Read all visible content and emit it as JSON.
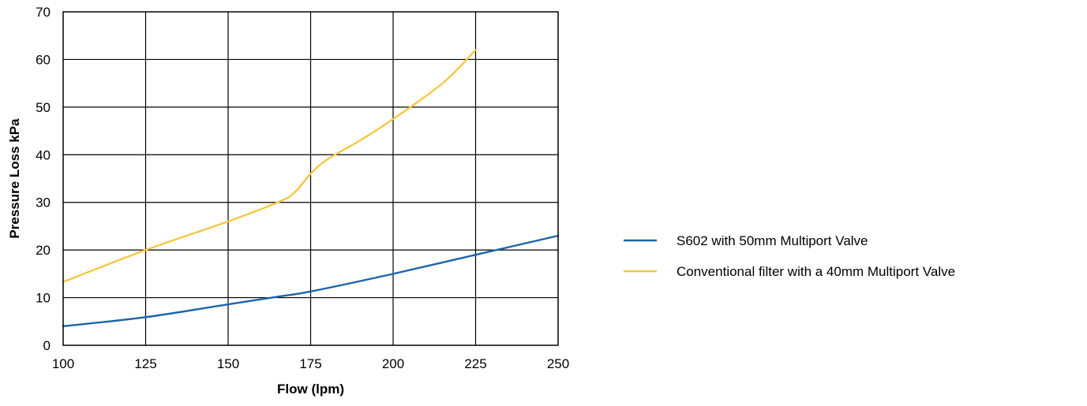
{
  "chart_data": {
    "type": "line",
    "title": "",
    "xlabel": "Flow (lpm)",
    "ylabel": "Pressure Loss kPa",
    "xlim": [
      100,
      250
    ],
    "ylim": [
      0,
      70
    ],
    "x_ticks": [
      100,
      125,
      150,
      175,
      200,
      225,
      250
    ],
    "y_ticks": [
      0,
      10,
      20,
      30,
      40,
      50,
      60,
      70
    ],
    "x_tick_labels": [
      "100",
      "125",
      "150",
      "175",
      "200",
      "225",
      "250"
    ],
    "y_tick_labels": [
      "0",
      "10",
      "20",
      "30",
      "40",
      "50",
      "60",
      "70"
    ],
    "grid": true,
    "legend_position": "right",
    "series": [
      {
        "name": "S602 with 50mm Multiport Valve",
        "color": "#1b64ad",
        "x": [
          100,
          125,
          150,
          165,
          175,
          200,
          225,
          250
        ],
        "y": [
          4,
          5.9,
          8.6,
          10.2,
          11.3,
          15,
          19,
          23
        ]
      },
      {
        "name": "Conventional filter with a 40mm Multiport Valve",
        "color": "#f5c842",
        "x": [
          100,
          125,
          150,
          165,
          170,
          175,
          180,
          190,
          200,
          215,
          225
        ],
        "y": [
          13.3,
          20,
          26,
          30,
          32,
          36,
          39,
          43,
          47.5,
          55,
          62
        ]
      }
    ]
  }
}
